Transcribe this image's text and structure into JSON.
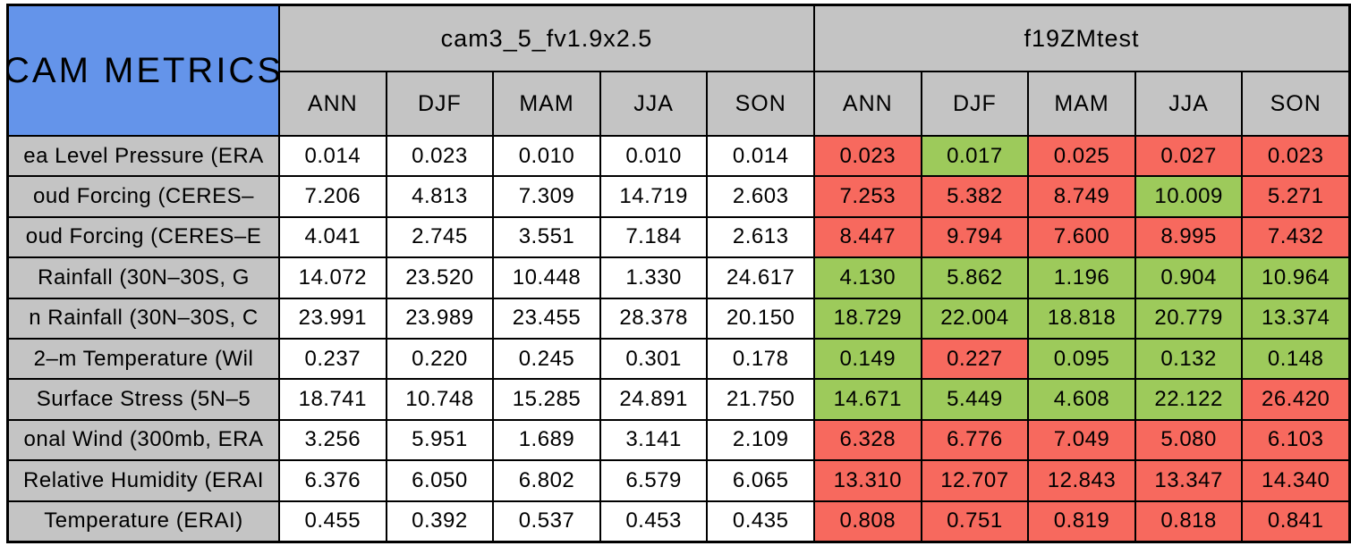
{
  "table": {
    "title": "CAM METRICS",
    "column_groups": [
      "cam3_5_fv1.9x2.5",
      "f19ZMtest"
    ],
    "seasons": [
      "ANN",
      "DJF",
      "MAM",
      "JJA",
      "SON"
    ],
    "rows": [
      {
        "label": "ea Level Pressure (ERA",
        "model1": [
          "0.014",
          "0.023",
          "0.010",
          "0.010",
          "0.014"
        ],
        "model2": {
          "values": [
            "0.023",
            "0.017",
            "0.025",
            "0.027",
            "0.023"
          ],
          "status": [
            "red",
            "green",
            "red",
            "red",
            "red"
          ]
        }
      },
      {
        "label": "oud Forcing (CERES–",
        "model1": [
          "7.206",
          "4.813",
          "7.309",
          "14.719",
          "2.603"
        ],
        "model2": {
          "values": [
            "7.253",
            "5.382",
            "8.749",
            "10.009",
            "5.271"
          ],
          "status": [
            "red",
            "red",
            "red",
            "green",
            "red"
          ]
        }
      },
      {
        "label": "oud Forcing (CERES–E",
        "model1": [
          "4.041",
          "2.745",
          "3.551",
          "7.184",
          "2.613"
        ],
        "model2": {
          "values": [
            "8.447",
            "9.794",
            "7.600",
            "8.995",
            "7.432"
          ],
          "status": [
            "red",
            "red",
            "red",
            "red",
            "red"
          ]
        }
      },
      {
        "label": "Rainfall (30N–30S, G",
        "model1": [
          "14.072",
          "23.520",
          "10.448",
          "1.330",
          "24.617"
        ],
        "model2": {
          "values": [
            "4.130",
            "5.862",
            "1.196",
            "0.904",
            "10.964"
          ],
          "status": [
            "green",
            "green",
            "green",
            "green",
            "green"
          ]
        }
      },
      {
        "label": "n Rainfall (30N–30S, C",
        "model1": [
          "23.991",
          "23.989",
          "23.455",
          "28.378",
          "20.150"
        ],
        "model2": {
          "values": [
            "18.729",
            "22.004",
            "18.818",
            "20.779",
            "13.374"
          ],
          "status": [
            "green",
            "green",
            "green",
            "green",
            "green"
          ]
        }
      },
      {
        "label": "2–m Temperature (Wil",
        "model1": [
          "0.237",
          "0.220",
          "0.245",
          "0.301",
          "0.178"
        ],
        "model2": {
          "values": [
            "0.149",
            "0.227",
            "0.095",
            "0.132",
            "0.148"
          ],
          "status": [
            "green",
            "red",
            "green",
            "green",
            "green"
          ]
        }
      },
      {
        "label": "Surface Stress (5N–5",
        "model1": [
          "18.741",
          "10.748",
          "15.285",
          "24.891",
          "21.750"
        ],
        "model2": {
          "values": [
            "14.671",
            "5.449",
            "4.608",
            "22.122",
            "26.420"
          ],
          "status": [
            "green",
            "green",
            "green",
            "green",
            "red"
          ]
        }
      },
      {
        "label": "onal Wind (300mb, ERA",
        "model1": [
          "3.256",
          "5.951",
          "1.689",
          "3.141",
          "2.109"
        ],
        "model2": {
          "values": [
            "6.328",
            "6.776",
            "7.049",
            "5.080",
            "6.103"
          ],
          "status": [
            "red",
            "red",
            "red",
            "red",
            "red"
          ]
        }
      },
      {
        "label": "Relative Humidity (ERAI",
        "model1": [
          "6.376",
          "6.050",
          "6.802",
          "6.579",
          "6.065"
        ],
        "model2": {
          "values": [
            "13.310",
            "12.707",
            "12.843",
            "13.347",
            "14.340"
          ],
          "status": [
            "red",
            "red",
            "red",
            "red",
            "red"
          ]
        }
      },
      {
        "label": "Temperature (ERAI)",
        "model1": [
          "0.455",
          "0.392",
          "0.537",
          "0.453",
          "0.435"
        ],
        "model2": {
          "values": [
            "0.808",
            "0.751",
            "0.819",
            "0.818",
            "0.841"
          ],
          "status": [
            "red",
            "red",
            "red",
            "red",
            "red"
          ]
        }
      }
    ]
  },
  "colors": {
    "title_bg": "#6494ea",
    "header_bg": "#c4c4c4",
    "cell_white": "#ffffff",
    "cell_red": "#f7695e",
    "cell_green": "#9dca5b",
    "border": "#000000"
  },
  "chart_data": {
    "type": "table",
    "title": "CAM METRICS",
    "column_groups": [
      {
        "name": "cam3_5_fv1.9x2.5",
        "columns": [
          "ANN",
          "DJF",
          "MAM",
          "JJA",
          "SON"
        ]
      },
      {
        "name": "f19ZMtest",
        "columns": [
          "ANN",
          "DJF",
          "MAM",
          "JJA",
          "SON"
        ]
      }
    ],
    "rows": [
      {
        "label": "ea Level Pressure (ERA",
        "cam3_5_fv1.9x2.5": [
          0.014,
          0.023,
          0.01,
          0.01,
          0.014
        ],
        "f19ZMtest": [
          0.023,
          0.017,
          0.025,
          0.027,
          0.023
        ],
        "f19ZMtest_cell_colors": [
          "red",
          "green",
          "red",
          "red",
          "red"
        ]
      },
      {
        "label": "oud Forcing (CERES–",
        "cam3_5_fv1.9x2.5": [
          7.206,
          4.813,
          7.309,
          14.719,
          2.603
        ],
        "f19ZMtest": [
          7.253,
          5.382,
          8.749,
          10.009,
          5.271
        ],
        "f19ZMtest_cell_colors": [
          "red",
          "red",
          "red",
          "green",
          "red"
        ]
      },
      {
        "label": "oud Forcing (CERES–E",
        "cam3_5_fv1.9x2.5": [
          4.041,
          2.745,
          3.551,
          7.184,
          2.613
        ],
        "f19ZMtest": [
          8.447,
          9.794,
          7.6,
          8.995,
          7.432
        ],
        "f19ZMtest_cell_colors": [
          "red",
          "red",
          "red",
          "red",
          "red"
        ]
      },
      {
        "label": "Rainfall (30N–30S, G",
        "cam3_5_fv1.9x2.5": [
          14.072,
          23.52,
          10.448,
          1.33,
          24.617
        ],
        "f19ZMtest": [
          4.13,
          5.862,
          1.196,
          0.904,
          10.964
        ],
        "f19ZMtest_cell_colors": [
          "green",
          "green",
          "green",
          "green",
          "green"
        ]
      },
      {
        "label": "n Rainfall (30N–30S, C",
        "cam3_5_fv1.9x2.5": [
          23.991,
          23.989,
          23.455,
          28.378,
          20.15
        ],
        "f19ZMtest": [
          18.729,
          22.004,
          18.818,
          20.779,
          13.374
        ],
        "f19ZMtest_cell_colors": [
          "green",
          "green",
          "green",
          "green",
          "green"
        ]
      },
      {
        "label": "2–m Temperature (Wil",
        "cam3_5_fv1.9x2.5": [
          0.237,
          0.22,
          0.245,
          0.301,
          0.178
        ],
        "f19ZMtest": [
          0.149,
          0.227,
          0.095,
          0.132,
          0.148
        ],
        "f19ZMtest_cell_colors": [
          "green",
          "red",
          "green",
          "green",
          "green"
        ]
      },
      {
        "label": "Surface Stress (5N–5",
        "cam3_5_fv1.9x2.5": [
          18.741,
          10.748,
          15.285,
          24.891,
          21.75
        ],
        "f19ZMtest": [
          14.671,
          5.449,
          4.608,
          22.122,
          26.42
        ],
        "f19ZMtest_cell_colors": [
          "green",
          "green",
          "green",
          "green",
          "red"
        ]
      },
      {
        "label": "onal Wind (300mb, ERA",
        "cam3_5_fv1.9x2.5": [
          3.256,
          5.951,
          1.689,
          3.141,
          2.109
        ],
        "f19ZMtest": [
          6.328,
          6.776,
          7.049,
          5.08,
          6.103
        ],
        "f19ZMtest_cell_colors": [
          "red",
          "red",
          "red",
          "red",
          "red"
        ]
      },
      {
        "label": "Relative Humidity (ERAI",
        "cam3_5_fv1.9x2.5": [
          6.376,
          6.05,
          6.802,
          6.579,
          6.065
        ],
        "f19ZMtest": [
          13.31,
          12.707,
          12.843,
          13.347,
          14.34
        ],
        "f19ZMtest_cell_colors": [
          "red",
          "red",
          "red",
          "red",
          "red"
        ]
      },
      {
        "label": "Temperature (ERAI)",
        "cam3_5_fv1.9x2.5": [
          0.455,
          0.392,
          0.537,
          0.453,
          0.435
        ],
        "f19ZMtest": [
          0.808,
          0.751,
          0.819,
          0.818,
          0.841
        ],
        "f19ZMtest_cell_colors": [
          "red",
          "red",
          "red",
          "red",
          "red"
        ]
      }
    ],
    "layout": {
      "grid": "on",
      "header_rows": 2,
      "value_columns": 10
    }
  }
}
